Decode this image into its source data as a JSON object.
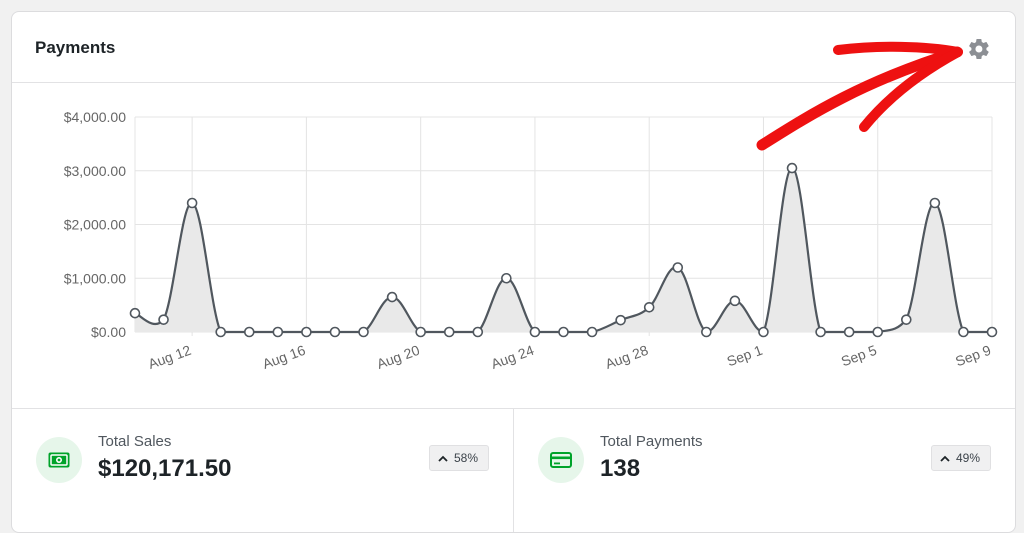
{
  "widget": {
    "title": "Payments",
    "settings_icon": "gear-icon"
  },
  "chart_data": {
    "type": "area",
    "title": "",
    "xlabel": "",
    "ylabel": "",
    "ylim": [
      0,
      4000
    ],
    "y_ticks": [
      "$4,000.00",
      "$3,000.00",
      "$2,000.00",
      "$1,000.00",
      "$0.00"
    ],
    "y_tick_values": [
      4000,
      3000,
      2000,
      1000,
      0
    ],
    "x_ticks": [
      "Aug 12",
      "Aug 16",
      "Aug 20",
      "Aug 24",
      "Aug 28",
      "Sep 1",
      "Sep 5",
      "Sep 9"
    ],
    "x_tick_index": [
      2,
      6,
      10,
      14,
      18,
      22,
      26,
      30
    ],
    "x": [
      "Aug 10",
      "Aug 11",
      "Aug 12",
      "Aug 13",
      "Aug 14",
      "Aug 15",
      "Aug 16",
      "Aug 17",
      "Aug 18",
      "Aug 19",
      "Aug 20",
      "Aug 21",
      "Aug 22",
      "Aug 23",
      "Aug 24",
      "Aug 25",
      "Aug 26",
      "Aug 27",
      "Aug 28",
      "Aug 29",
      "Aug 30",
      "Aug 31",
      "Sep 1",
      "Sep 2",
      "Sep 3",
      "Sep 4",
      "Sep 5",
      "Sep 6",
      "Sep 7",
      "Sep 8",
      "Sep 9"
    ],
    "values": [
      350,
      230,
      2400,
      0,
      0,
      0,
      0,
      0,
      0,
      650,
      0,
      0,
      0,
      1000,
      0,
      0,
      0,
      220,
      460,
      1200,
      0,
      580,
      0,
      3050,
      0,
      0,
      0,
      230,
      2400,
      0,
      0
    ],
    "grid": true,
    "line_color": "#50575e",
    "fill_color": "#e9e9e9"
  },
  "stats": [
    {
      "label": "Total Sales",
      "value": "$120,171.50",
      "change": "58%",
      "icon": "cash-icon",
      "icon_color": "#00a32a",
      "icon_bg": "#e6f6ea"
    },
    {
      "label": "Total Payments",
      "value": "138",
      "change": "49%",
      "icon": "credit-card-icon",
      "icon_color": "#00a32a",
      "icon_bg": "#e6f6ea"
    }
  ],
  "annotation": {
    "arrow_color": "#ee1111",
    "arrow_icon": "hand-drawn-arrow-icon"
  }
}
